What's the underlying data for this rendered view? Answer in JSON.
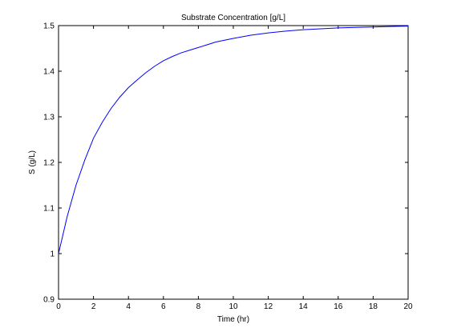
{
  "chart_data": {
    "type": "line",
    "title": "Substrate Concentration [g/L]",
    "xlabel": "Time (hr)",
    "ylabel": "S (g/L)",
    "xlim": [
      0,
      20
    ],
    "ylim": [
      0.9,
      1.5
    ],
    "x_ticks": [
      0,
      2,
      4,
      6,
      8,
      10,
      12,
      14,
      16,
      18,
      20
    ],
    "x_tick_labels": [
      "0",
      "2",
      "4",
      "6",
      "8",
      "10",
      "12",
      "14",
      "16",
      "18",
      "20"
    ],
    "y_ticks": [
      0.9,
      1,
      1.1,
      1.2,
      1.3,
      1.4,
      1.5
    ],
    "y_tick_labels": [
      "0.9",
      "1",
      "1.1",
      "1.2",
      "1.3",
      "1.4",
      "1.5"
    ],
    "grid": false,
    "series": [
      {
        "color": "#0000ff",
        "x": [
          0,
          0.5,
          1,
          1.5,
          2,
          2.5,
          3,
          3.5,
          4,
          4.5,
          5,
          5.5,
          6,
          6.5,
          7,
          7.5,
          8,
          9,
          10,
          11,
          12,
          13,
          14,
          15,
          16,
          17,
          18,
          19,
          20
        ],
        "y": [
          1.0,
          1.082,
          1.15,
          1.205,
          1.253,
          1.288,
          1.318,
          1.343,
          1.364,
          1.381,
          1.397,
          1.411,
          1.423,
          1.432,
          1.44,
          1.446,
          1.452,
          1.464,
          1.472,
          1.479,
          1.484,
          1.488,
          1.491,
          1.493,
          1.495,
          1.496,
          1.497,
          1.498,
          1.499
        ]
      }
    ]
  }
}
